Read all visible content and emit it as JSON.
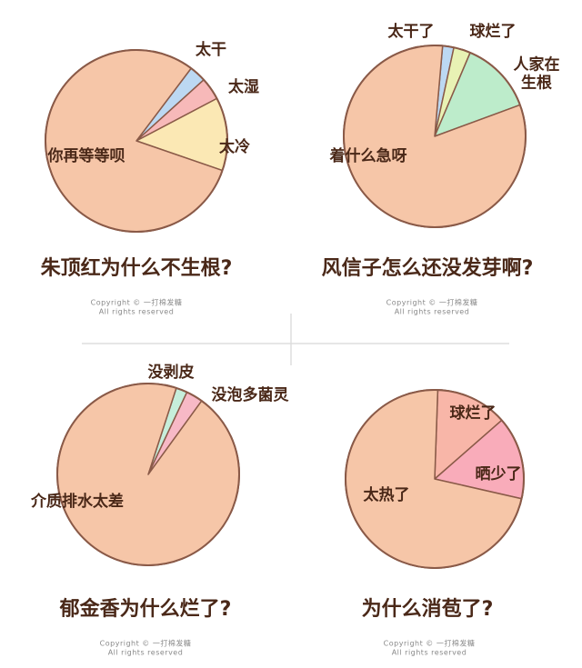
{
  "copyright": [
    "Copyright © 一打棉发糖",
    "All rights reserved"
  ],
  "chart_data": [
    {
      "type": "pie",
      "title": "朱顶红为什么不生根?",
      "categories": [
        "太干",
        "太湿",
        "太冷",
        "你再等等呗"
      ],
      "values": [
        3,
        4,
        13,
        80
      ],
      "colors": [
        "#bcd8f2",
        "#f7b9b9",
        "#fbe8b4",
        "#f6c6a8"
      ]
    },
    {
      "type": "pie",
      "title": "风信子怎么还没发芽啊?",
      "categories": [
        "太干了",
        "球烂了",
        "人家在生根",
        "着什么急呀"
      ],
      "values": [
        2,
        3,
        13,
        82
      ],
      "colors": [
        "#bcd8f2",
        "#e8f2b4",
        "#bdeccb",
        "#f6c6a8"
      ]
    },
    {
      "type": "pie",
      "title": "郁金香为什么烂了?",
      "categories": [
        "没剥皮",
        "没泡多菌灵",
        "介质排水太差"
      ],
      "values": [
        2,
        3,
        95
      ],
      "colors": [
        "#c6eedb",
        "#f7b9c6",
        "#f6c6a8"
      ]
    },
    {
      "type": "pie",
      "title": "为什么消苞了?",
      "categories": [
        "球烂了",
        "晒少了",
        "太热了"
      ],
      "values": [
        13,
        15,
        72
      ],
      "colors": [
        "#f8b6a8",
        "#f9acba",
        "#f6c6a8"
      ]
    }
  ]
}
